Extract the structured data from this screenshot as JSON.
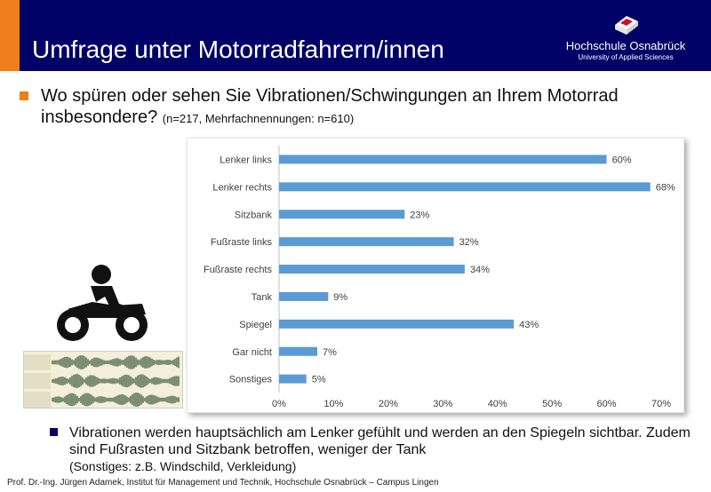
{
  "header": {
    "title": "Umfrage unter Motorradfahrern/innen",
    "logo_name": "Hochschule Osnabrück",
    "logo_sub": "University of Applied Sciences",
    "bg_color": "#000066",
    "accent_color": "#ee7f1a"
  },
  "question": {
    "text": "Wo spüren oder sehen Sie Vibrationen/Schwingungen an Ihrem Motorrad insbesondere?",
    "detail": "(n=217, Mehrfachnennungen:  n=610)"
  },
  "chart_data": {
    "type": "bar",
    "orientation": "horizontal",
    "categories": [
      "Lenker links",
      "Lenker rechts",
      "Sitzbank",
      "Fußraste links",
      "Fußraste rechts",
      "Tank",
      "Spiegel",
      "Gar nicht",
      "Sonstiges"
    ],
    "values": [
      60,
      68,
      23,
      32,
      34,
      9,
      43,
      7,
      5
    ],
    "value_labels": [
      "60%",
      "68%",
      "23%",
      "32%",
      "34%",
      "9%",
      "43%",
      "7%",
      "5%"
    ],
    "xlim": [
      0,
      70
    ],
    "x_ticks": [
      "0%",
      "10%",
      "20%",
      "30%",
      "40%",
      "50%",
      "60%",
      "70%"
    ],
    "bar_color": "#5b9bd5",
    "grid": false
  },
  "note": {
    "text": "Vibrationen werden hauptsächlich am Lenker gefühlt und werden an den Spiegeln sichtbar. Zudem sind Fußrasten und Sitzbank betroffen, weniger der Tank",
    "detail": "(Sonstiges: z.B. Windschild, Verkleidung)"
  },
  "footer": "Prof. Dr.-Ing. Jürgen Adamek,  Institut für Management und Technik, Hochschule Osnabrück – Campus Lingen",
  "icons": [
    "motorcycle-rider-icon",
    "audio-waveform-icon",
    "hochschule-logo-icon"
  ]
}
